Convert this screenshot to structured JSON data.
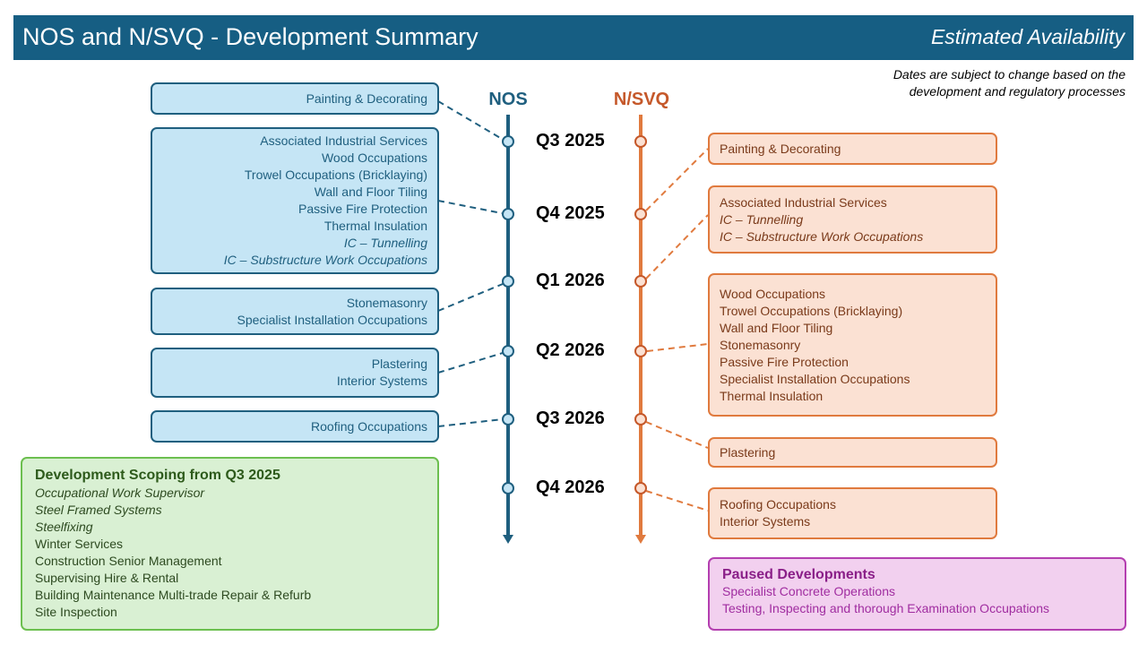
{
  "header": {
    "title": "NOS and N/SVQ - Development Summary",
    "subtitle": "Estimated Availability"
  },
  "note": [
    "Dates are subject to change based on the",
    "development and regulatory processes"
  ],
  "columns": {
    "nos": "NOS",
    "nsvq": "N/SVQ"
  },
  "colors": {
    "nos": "#1f5f7f",
    "nsvq": "#e07a3e",
    "header": "#165e83"
  },
  "quarters": [
    "Q3 2025",
    "Q4 2025",
    "Q1 2026",
    "Q2 2026",
    "Q3 2026",
    "Q4 2026"
  ],
  "nos_boxes": [
    {
      "quarter": "Q3 2025",
      "items": [
        {
          "t": "Painting & Decorating"
        }
      ]
    },
    {
      "quarter": "Q4 2025",
      "items": [
        {
          "t": "Associated Industrial Services"
        },
        {
          "t": "Wood Occupations"
        },
        {
          "t": "Trowel Occupations (Bricklaying)"
        },
        {
          "t": "Wall and Floor Tiling"
        },
        {
          "t": "Passive Fire Protection"
        },
        {
          "t": "Thermal Insulation"
        },
        {
          "t": "IC – Tunnelling",
          "italic": true
        },
        {
          "t": "IC – Substructure Work Occupations",
          "italic": true
        }
      ]
    },
    {
      "quarter": "Q1 2026",
      "items": [
        {
          "t": "Stonemasonry"
        },
        {
          "t": "Specialist Installation Occupations"
        }
      ]
    },
    {
      "quarter": "Q2 2026",
      "items": [
        {
          "t": "Plastering"
        },
        {
          "t": "Interior Systems"
        }
      ]
    },
    {
      "quarter": "Q3 2026",
      "items": [
        {
          "t": "Roofing Occupations"
        }
      ]
    }
  ],
  "nsvq_boxes": [
    {
      "quarter": "Q4 2025",
      "items": [
        {
          "t": "Painting & Decorating"
        }
      ]
    },
    {
      "quarter": "Q1 2026",
      "items": [
        {
          "t": "Associated Industrial Services"
        },
        {
          "t": "IC – Tunnelling",
          "italic": true
        },
        {
          "t": "IC – Substructure Work Occupations",
          "italic": true
        }
      ]
    },
    {
      "quarter": "Q2 2026",
      "items": [
        {
          "t": "Wood Occupations"
        },
        {
          "t": "Trowel Occupations (Bricklaying)"
        },
        {
          "t": "Wall and Floor Tiling"
        },
        {
          "t": "Stonemasonry"
        },
        {
          "t": "Passive Fire Protection"
        },
        {
          "t": "Specialist Installation Occupations"
        },
        {
          "t": "Thermal Insulation"
        }
      ]
    },
    {
      "quarter": "Q3 2026",
      "items": [
        {
          "t": "Plastering"
        }
      ]
    },
    {
      "quarter": "Q4 2026",
      "items": [
        {
          "t": "Roofing Occupations"
        },
        {
          "t": "Interior Systems"
        }
      ]
    }
  ],
  "scoping": {
    "title": "Development Scoping from Q3 2025",
    "items": [
      {
        "t": "Occupational Work Supervisor",
        "italic": true
      },
      {
        "t": "Steel Framed Systems",
        "italic": true
      },
      {
        "t": "Steelfixing",
        "italic": true
      },
      {
        "t": "Winter Services"
      },
      {
        "t": "Construction Senior Management"
      },
      {
        "t": "Supervising Hire & Rental"
      },
      {
        "t": "Building Maintenance Multi-trade Repair & Refurb"
      },
      {
        "t": "Site Inspection"
      }
    ]
  },
  "paused": {
    "title": "Paused Developments",
    "items": [
      {
        "t": "Specialist Concrete Operations"
      },
      {
        "t": "Testing, Inspecting and thorough Examination Occupations"
      }
    ]
  }
}
